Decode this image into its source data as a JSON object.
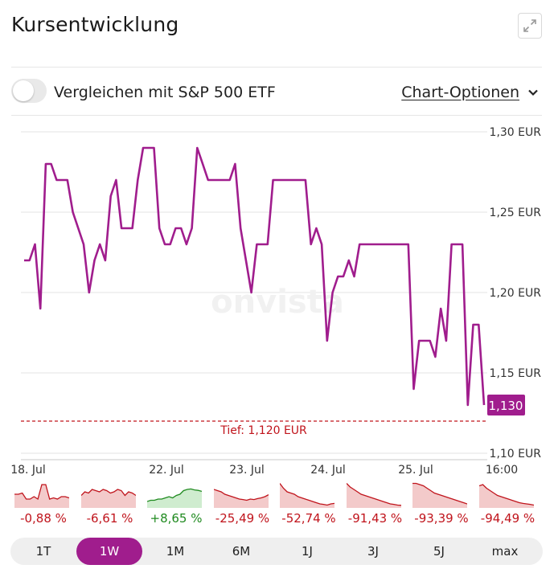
{
  "header": {
    "title": "Kursentwicklung",
    "expand_icon": "expand-icon"
  },
  "controls": {
    "compare_label": "Vergleichen mit S&P 500 ETF",
    "compare_on": false,
    "options_label": "Chart-Optionen"
  },
  "colors": {
    "accent": "#a01d8d",
    "negative": "#c0141c",
    "positive": "#1f8a1f",
    "low_line": "#c0141c"
  },
  "watermark": "onvista",
  "chart_data": {
    "type": "line",
    "title": "",
    "xlabel": "",
    "ylabel": "",
    "ylim": [
      1.1,
      1.3
    ],
    "y_ticks": [
      "1,30 EUR",
      "1,25 EUR",
      "1,20 EUR",
      "1,15 EUR",
      "1,10 EUR"
    ],
    "y_tick_values": [
      1.3,
      1.25,
      1.2,
      1.15,
      1.1
    ],
    "x_ticks": [
      "18. Jul",
      "22. Jul",
      "23. Jul",
      "24. Jul",
      "25. Jul",
      "16:00"
    ],
    "grid": true,
    "current_label": "1,130",
    "current_value": 1.13,
    "low_label": "Tief: 1,120 EUR",
    "low_value": 1.12,
    "series": [
      {
        "values": [
          1.22,
          1.22,
          1.23,
          1.19,
          1.28,
          1.28,
          1.27,
          1.27,
          1.27,
          1.25,
          1.24,
          1.23,
          1.2,
          1.22,
          1.23,
          1.22,
          1.26,
          1.27,
          1.24,
          1.24,
          1.24,
          1.27,
          1.29,
          1.29,
          1.29,
          1.24,
          1.23,
          1.23,
          1.24,
          1.24,
          1.23,
          1.24,
          1.29,
          1.28,
          1.27,
          1.27,
          1.27,
          1.27,
          1.27,
          1.28,
          1.24,
          1.22,
          1.2,
          1.23,
          1.23,
          1.23,
          1.27,
          1.27,
          1.27,
          1.27,
          1.27,
          1.27,
          1.27,
          1.23,
          1.24,
          1.23,
          1.17,
          1.2,
          1.21,
          1.21,
          1.22,
          1.21,
          1.23,
          1.23,
          1.23,
          1.23,
          1.23,
          1.23,
          1.23,
          1.23,
          1.23,
          1.23,
          1.14,
          1.17,
          1.17,
          1.17,
          1.16,
          1.19,
          1.17,
          1.23,
          1.23,
          1.23,
          1.13,
          1.18,
          1.18,
          1.13
        ]
      }
    ]
  },
  "performance": [
    {
      "value": "-0,88 %",
      "trend": "negative",
      "spark": [
        0.5,
        0.5,
        0.55,
        0.3,
        0.3,
        0.4,
        0.3,
        0.9,
        0.9,
        0.3,
        0.35,
        0.3,
        0.4,
        0.4,
        0.35
      ]
    },
    {
      "value": "-6,61 %",
      "trend": "negative",
      "spark": [
        0.45,
        0.6,
        0.55,
        0.7,
        0.65,
        0.6,
        0.7,
        0.65,
        0.55,
        0.6,
        0.7,
        0.65,
        0.45,
        0.6,
        0.55,
        0.45
      ]
    },
    {
      "value": "+8,65 %",
      "trend": "positive",
      "spark": [
        0.2,
        0.25,
        0.25,
        0.3,
        0.3,
        0.35,
        0.4,
        0.35,
        0.45,
        0.5,
        0.65,
        0.7,
        0.72,
        0.68,
        0.66,
        0.62
      ]
    },
    {
      "value": "-25,49 %",
      "trend": "negative",
      "spark": [
        0.7,
        0.65,
        0.6,
        0.5,
        0.45,
        0.4,
        0.35,
        0.3,
        0.28,
        0.25,
        0.3,
        0.28,
        0.32,
        0.35,
        0.4,
        0.48
      ]
    },
    {
      "value": "-52,74 %",
      "trend": "negative",
      "spark": [
        0.95,
        0.75,
        0.6,
        0.55,
        0.5,
        0.4,
        0.35,
        0.3,
        0.25,
        0.2,
        0.15,
        0.1,
        0.08,
        0.05,
        0.1,
        0.12
      ]
    },
    {
      "value": "-91,43 %",
      "trend": "negative",
      "spark": [
        0.95,
        0.8,
        0.7,
        0.6,
        0.5,
        0.45,
        0.4,
        0.35,
        0.3,
        0.25,
        0.2,
        0.15,
        0.1,
        0.08,
        0.05,
        0.04
      ]
    },
    {
      "value": "-93,39 %",
      "trend": "negative",
      "spark": [
        0.95,
        0.95,
        0.9,
        0.85,
        0.75,
        0.65,
        0.55,
        0.5,
        0.45,
        0.4,
        0.35,
        0.3,
        0.25,
        0.2,
        0.15,
        0.1
      ]
    },
    {
      "value": "-94,49 %",
      "trend": "negative",
      "spark": [
        0.85,
        0.9,
        0.75,
        0.65,
        0.55,
        0.45,
        0.4,
        0.35,
        0.3,
        0.25,
        0.2,
        0.15,
        0.12,
        0.1,
        0.08,
        0.05
      ]
    }
  ],
  "ranges": [
    {
      "label": "1T",
      "active": false
    },
    {
      "label": "1W",
      "active": true
    },
    {
      "label": "1M",
      "active": false
    },
    {
      "label": "6M",
      "active": false
    },
    {
      "label": "1J",
      "active": false
    },
    {
      "label": "3J",
      "active": false
    },
    {
      "label": "5J",
      "active": false
    },
    {
      "label": "max",
      "active": false
    }
  ]
}
